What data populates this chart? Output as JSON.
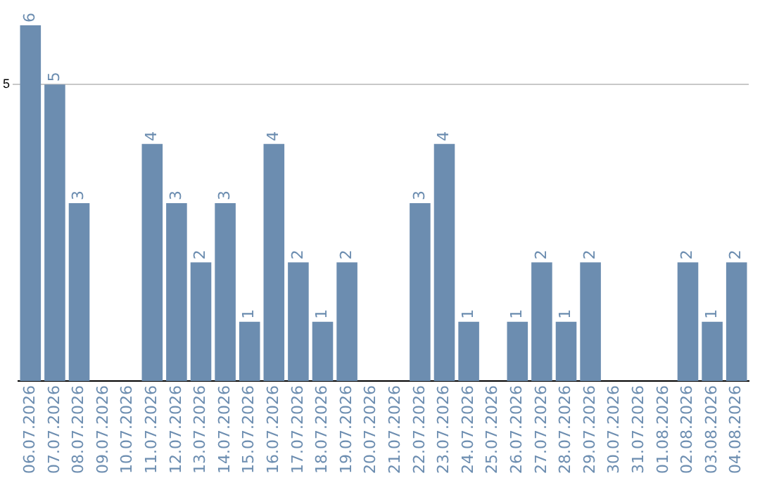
{
  "chart_data": {
    "type": "bar",
    "categories": [
      "06.07.2026",
      "07.07.2026",
      "08.07.2026",
      "09.07.2026",
      "10.07.2026",
      "11.07.2026",
      "12.07.2026",
      "13.07.2026",
      "14.07.2026",
      "15.07.2026",
      "16.07.2026",
      "17.07.2026",
      "18.07.2026",
      "19.07.2026",
      "20.07.2026",
      "21.07.2026",
      "22.07.2026",
      "23.07.2026",
      "24.07.2026",
      "25.07.2026",
      "26.07.2026",
      "27.07.2026",
      "28.07.2026",
      "29.07.2026",
      "30.07.2026",
      "31.07.2026",
      "01.08.2026",
      "02.08.2026",
      "03.08.2026",
      "04.08.2026"
    ],
    "values": [
      6,
      5,
      3,
      0,
      0,
      4,
      3,
      2,
      3,
      1,
      4,
      2,
      1,
      2,
      0,
      0,
      3,
      4,
      1,
      0,
      1,
      2,
      1,
      2,
      0,
      0,
      0,
      2,
      1,
      2
    ],
    "value_labels": [
      "6",
      "5",
      "3",
      null,
      null,
      "4",
      "3",
      "2",
      "3",
      "1",
      "4",
      "2",
      "1",
      "2",
      null,
      null,
      "3",
      "4",
      "1",
      null,
      "1",
      "2",
      "1",
      "2",
      null,
      null,
      null,
      "2",
      "1",
      "2"
    ],
    "color": "#6c8db0",
    "ylim": [
      0,
      6
    ],
    "yticks": [
      5
    ],
    "grid": "y",
    "legend": false
  }
}
